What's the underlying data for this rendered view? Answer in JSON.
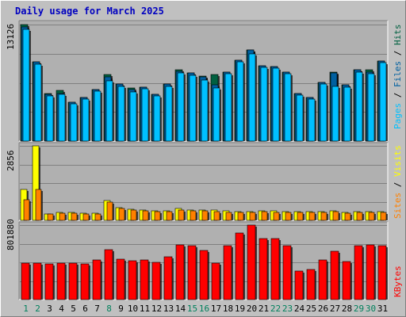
{
  "colors": {
    "background": "#c0c0c0",
    "panel": "#b0b0b0",
    "pages": "#00c0ff",
    "files": "#0060a0",
    "hits": "#006040",
    "sites": "#ff8000",
    "visits": "#ffff00",
    "kbytes": "#ff0000",
    "title": "#0000c0",
    "weekday": "#000000",
    "weekend": "#00805c"
  },
  "chart_data": {
    "type": "bar",
    "title": "Daily usage for March 2025",
    "categories": [
      "1",
      "2",
      "3",
      "4",
      "5",
      "6",
      "7",
      "8",
      "9",
      "10",
      "11",
      "12",
      "13",
      "14",
      "15",
      "16",
      "17",
      "18",
      "19",
      "20",
      "21",
      "22",
      "23",
      "24",
      "25",
      "26",
      "27",
      "28",
      "29",
      "30",
      "31"
    ],
    "weekend_days": [
      "1",
      "2",
      "8",
      "15",
      "16",
      "22",
      "23",
      "29",
      "30"
    ],
    "panels": [
      {
        "name": "hits-files-pages",
        "ymax_label": "13126",
        "ylim": [
          0,
          13126
        ],
        "legend": [
          "Pages",
          "Files",
          "Hits"
        ],
        "series": [
          {
            "name": "Hits",
            "values": [
              13126,
              8900,
              5400,
              5700,
              4400,
              4900,
              5800,
              7500,
              6400,
              6000,
              6100,
              5300,
              6400,
              8000,
              7700,
              7300,
              7500,
              7800,
              9100,
              10300,
              8500,
              8400,
              7800,
              5400,
              4900,
              6600,
              7800,
              6300,
              8000,
              8000,
              9000
            ]
          },
          {
            "name": "Files",
            "values": [
              12900,
              8900,
              5300,
              5400,
              4400,
              4900,
              5800,
              7200,
              6400,
              5800,
              6100,
              5300,
              6400,
              7900,
              7700,
              7200,
              6300,
              7800,
              9100,
              10300,
              8500,
              8400,
              7800,
              5400,
              4900,
              6600,
              7700,
              6300,
              8000,
              7800,
              9000
            ]
          },
          {
            "name": "Pages",
            "values": [
              12600,
              8700,
              5100,
              5300,
              4200,
              4700,
              5600,
              6800,
              6200,
              5500,
              5900,
              5100,
              6200,
              7700,
              7400,
              6900,
              6000,
              7600,
              8900,
              9800,
              8300,
              8200,
              7600,
              5200,
              4700,
              6400,
              6200,
              6100,
              7800,
              7600,
              8800
            ]
          }
        ]
      },
      {
        "name": "visits-sites",
        "ymax_label": "2856",
        "ylim": [
          0,
          2856
        ],
        "legend": [
          "Sites",
          "Visits"
        ],
        "series": [
          {
            "name": "Visits",
            "values": [
              1200,
              2856,
              250,
              300,
              290,
              260,
              280,
              750,
              500,
              430,
              400,
              360,
              370,
              470,
              390,
              400,
              380,
              350,
              330,
              340,
              360,
              350,
              330,
              320,
              330,
              330,
              350,
              300,
              320,
              330,
              320
            ]
          },
          {
            "name": "Sites",
            "values": [
              780,
              1200,
              230,
              260,
              260,
              230,
              250,
              700,
              450,
              400,
              360,
              330,
              340,
              400,
              350,
              360,
              340,
              310,
              300,
              310,
              320,
              310,
              300,
              300,
              300,
              300,
              320,
              270,
              290,
              300,
              290
            ]
          }
        ]
      },
      {
        "name": "kbytes",
        "ymax_label": "801880",
        "ylim": [
          0,
          801880
        ],
        "legend": [
          "KBytes"
        ],
        "series": [
          {
            "name": "KBytes",
            "values": [
              390000,
              390000,
              385000,
              390000,
              390000,
              385000,
              430000,
              540000,
              435000,
              420000,
              430000,
              400000,
              460000,
              590000,
              580000,
              530000,
              395000,
              580000,
              720000,
              801880,
              660000,
              660000,
              580000,
              310000,
              320000,
              430000,
              520000,
              410000,
              580000,
              590000,
              580000
            ]
          }
        ]
      }
    ]
  }
}
